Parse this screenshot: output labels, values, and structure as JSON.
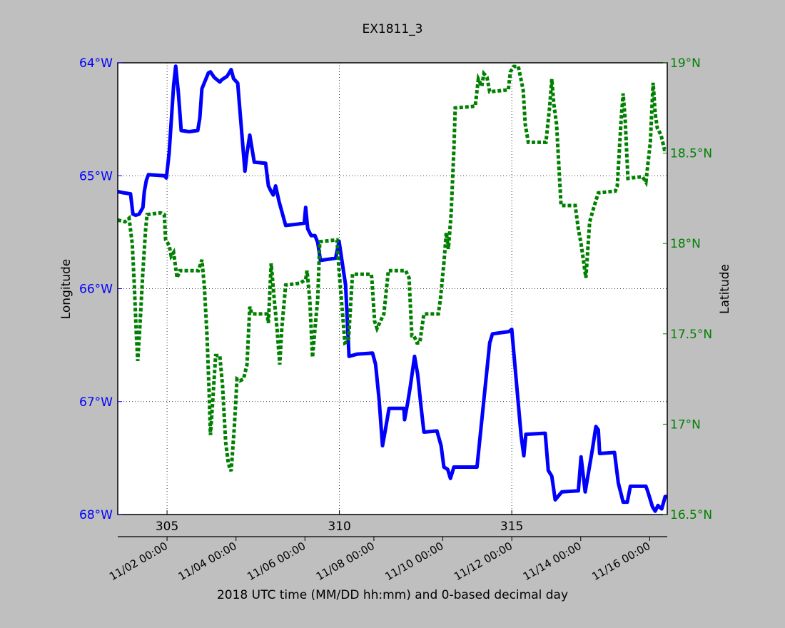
{
  "chart_data": {
    "type": "line",
    "title": "EX1811_3",
    "xlabel": "2018 UTC time (MM/DD hh:mm) and 0-based decimal day",
    "ylabel_left": "Longitude",
    "ylabel_right": "Latitude",
    "xlim": [
      303.57,
      319.51
    ],
    "ylim_left": [
      -68,
      -64
    ],
    "ylim_right": [
      16.5,
      19
    ],
    "grid": true,
    "colors": {
      "longitude": "#0000ff",
      "latitude": "#008000",
      "background": "#bfbfbf"
    },
    "x_ticks": [
      {
        "value": 305,
        "label": "305"
      },
      {
        "value": 310,
        "label": "310"
      },
      {
        "value": 315,
        "label": "315"
      }
    ],
    "date_ticks": [
      {
        "value": 305,
        "label": "11/02 00:00"
      },
      {
        "value": 307,
        "label": "11/04 00:00"
      },
      {
        "value": 309,
        "label": "11/06 00:00"
      },
      {
        "value": 311,
        "label": "11/08 00:00"
      },
      {
        "value": 313,
        "label": "11/10 00:00"
      },
      {
        "value": 315,
        "label": "11/12 00:00"
      },
      {
        "value": 317,
        "label": "11/14 00:00"
      },
      {
        "value": 319,
        "label": "11/16 00:00"
      }
    ],
    "left_ticks": [
      {
        "value": -64,
        "label": "64°W"
      },
      {
        "value": -65,
        "label": "65°W"
      },
      {
        "value": -66,
        "label": "66°W"
      },
      {
        "value": -67,
        "label": "67°W"
      },
      {
        "value": -68,
        "label": "68°W"
      }
    ],
    "right_ticks": [
      {
        "value": 19,
        "label": "19°N"
      },
      {
        "value": 18.5,
        "label": "18.5°N"
      },
      {
        "value": 18,
        "label": "18°N"
      },
      {
        "value": 17.5,
        "label": "17.5°N"
      },
      {
        "value": 17,
        "label": "17°N"
      },
      {
        "value": 16.5,
        "label": "16.5°N"
      }
    ],
    "series": [
      {
        "name": "Longitude",
        "axis": "left",
        "style": "solid",
        "points": [
          [
            303.57,
            -65.14
          ],
          [
            303.72,
            -65.15
          ],
          [
            303.94,
            -65.16
          ],
          [
            304.01,
            -65.34
          ],
          [
            304.09,
            -65.35
          ],
          [
            304.19,
            -65.34
          ],
          [
            304.3,
            -65.28
          ],
          [
            304.34,
            -65.14
          ],
          [
            304.4,
            -65.04
          ],
          [
            304.46,
            -64.99
          ],
          [
            304.92,
            -65.0
          ],
          [
            304.98,
            -65.02
          ],
          [
            305.06,
            -64.8
          ],
          [
            305.19,
            -64.2
          ],
          [
            305.25,
            -64.03
          ],
          [
            305.33,
            -64.27
          ],
          [
            305.41,
            -64.6
          ],
          [
            305.64,
            -64.61
          ],
          [
            305.89,
            -64.6
          ],
          [
            305.95,
            -64.49
          ],
          [
            306.01,
            -64.23
          ],
          [
            306.2,
            -64.09
          ],
          [
            306.26,
            -64.08
          ],
          [
            306.37,
            -64.13
          ],
          [
            306.53,
            -64.17
          ],
          [
            306.59,
            -64.15
          ],
          [
            306.74,
            -64.12
          ],
          [
            306.86,
            -64.06
          ],
          [
            306.93,
            -64.14
          ],
          [
            307.05,
            -64.18
          ],
          [
            307.09,
            -64.33
          ],
          [
            307.26,
            -64.96
          ],
          [
            307.32,
            -64.8
          ],
          [
            307.4,
            -64.64
          ],
          [
            307.53,
            -64.88
          ],
          [
            307.86,
            -64.89
          ],
          [
            307.94,
            -65.09
          ],
          [
            308.02,
            -65.14
          ],
          [
            308.08,
            -65.17
          ],
          [
            308.15,
            -65.09
          ],
          [
            308.25,
            -65.23
          ],
          [
            308.44,
            -65.44
          ],
          [
            308.75,
            -65.43
          ],
          [
            308.98,
            -65.42
          ],
          [
            309.02,
            -65.28
          ],
          [
            309.08,
            -65.47
          ],
          [
            309.18,
            -65.53
          ],
          [
            309.29,
            -65.53
          ],
          [
            309.37,
            -65.59
          ],
          [
            309.45,
            -65.75
          ],
          [
            309.89,
            -65.73
          ],
          [
            309.99,
            -65.58
          ],
          [
            310.18,
            -65.97
          ],
          [
            310.28,
            -66.6
          ],
          [
            310.51,
            -66.58
          ],
          [
            310.96,
            -66.57
          ],
          [
            311.05,
            -66.67
          ],
          [
            311.15,
            -66.98
          ],
          [
            311.25,
            -67.39
          ],
          [
            311.34,
            -67.24
          ],
          [
            311.44,
            -67.06
          ],
          [
            311.87,
            -67.06
          ],
          [
            311.89,
            -67.16
          ],
          [
            311.98,
            -67.01
          ],
          [
            312.06,
            -66.86
          ],
          [
            312.18,
            -66.6
          ],
          [
            312.27,
            -66.76
          ],
          [
            312.37,
            -67.05
          ],
          [
            312.45,
            -67.27
          ],
          [
            312.83,
            -67.26
          ],
          [
            312.95,
            -67.39
          ],
          [
            313.03,
            -67.58
          ],
          [
            313.14,
            -67.6
          ],
          [
            313.22,
            -67.68
          ],
          [
            313.32,
            -67.58
          ],
          [
            313.39,
            -67.58
          ],
          [
            313.99,
            -67.58
          ],
          [
            314.36,
            -66.48
          ],
          [
            314.44,
            -66.4
          ],
          [
            314.92,
            -66.38
          ],
          [
            315.0,
            -66.36
          ],
          [
            315.27,
            -67.3
          ],
          [
            315.35,
            -67.48
          ],
          [
            315.41,
            -67.29
          ],
          [
            315.97,
            -67.28
          ],
          [
            316.06,
            -67.61
          ],
          [
            316.16,
            -67.66
          ],
          [
            316.26,
            -67.87
          ],
          [
            316.45,
            -67.8
          ],
          [
            316.93,
            -67.79
          ],
          [
            317.01,
            -67.49
          ],
          [
            317.13,
            -67.8
          ],
          [
            317.34,
            -67.42
          ],
          [
            317.44,
            -67.22
          ],
          [
            317.51,
            -67.25
          ],
          [
            317.55,
            -67.46
          ],
          [
            317.98,
            -67.45
          ],
          [
            318.09,
            -67.72
          ],
          [
            318.23,
            -67.89
          ],
          [
            318.35,
            -67.89
          ],
          [
            318.44,
            -67.75
          ],
          [
            318.89,
            -67.75
          ],
          [
            318.95,
            -67.8
          ],
          [
            319.08,
            -67.93
          ],
          [
            319.16,
            -67.97
          ],
          [
            319.24,
            -67.92
          ],
          [
            319.35,
            -67.95
          ],
          [
            319.45,
            -67.84
          ],
          [
            319.51,
            -67.84
          ]
        ]
      },
      {
        "name": "Latitude",
        "axis": "right",
        "style": "dotted",
        "points": [
          [
            303.57,
            18.13
          ],
          [
            303.78,
            18.12
          ],
          [
            303.9,
            18.14
          ],
          [
            303.99,
            18.0
          ],
          [
            304.05,
            17.77
          ],
          [
            304.11,
            17.49
          ],
          [
            304.15,
            17.35
          ],
          [
            304.21,
            17.53
          ],
          [
            304.3,
            17.85
          ],
          [
            304.38,
            18.08
          ],
          [
            304.42,
            18.16
          ],
          [
            304.81,
            18.17
          ],
          [
            304.92,
            18.16
          ],
          [
            304.96,
            18.02
          ],
          [
            305.06,
            17.99
          ],
          [
            305.12,
            17.93
          ],
          [
            305.19,
            17.95
          ],
          [
            305.29,
            17.81
          ],
          [
            305.37,
            17.85
          ],
          [
            305.54,
            17.85
          ],
          [
            305.91,
            17.85
          ],
          [
            306.01,
            17.91
          ],
          [
            306.08,
            17.77
          ],
          [
            306.16,
            17.49
          ],
          [
            306.22,
            17.18
          ],
          [
            306.26,
            16.94
          ],
          [
            306.33,
            17.14
          ],
          [
            306.41,
            17.38
          ],
          [
            306.53,
            17.38
          ],
          [
            306.61,
            17.21
          ],
          [
            306.7,
            16.9
          ],
          [
            306.78,
            16.78
          ],
          [
            306.86,
            16.74
          ],
          [
            306.95,
            16.98
          ],
          [
            307.03,
            17.25
          ],
          [
            307.11,
            17.24
          ],
          [
            307.22,
            17.25
          ],
          [
            307.32,
            17.33
          ],
          [
            307.4,
            17.65
          ],
          [
            307.46,
            17.61
          ],
          [
            307.9,
            17.61
          ],
          [
            307.94,
            17.56
          ],
          [
            308.02,
            17.89
          ],
          [
            308.11,
            17.69
          ],
          [
            308.19,
            17.53
          ],
          [
            308.27,
            17.33
          ],
          [
            308.33,
            17.53
          ],
          [
            308.44,
            17.77
          ],
          [
            308.85,
            17.78
          ],
          [
            309.02,
            17.8
          ],
          [
            309.06,
            17.85
          ],
          [
            309.14,
            17.69
          ],
          [
            309.22,
            17.37
          ],
          [
            309.31,
            17.57
          ],
          [
            309.37,
            17.69
          ],
          [
            309.43,
            18.01
          ],
          [
            309.93,
            18.02
          ],
          [
            309.99,
            17.85
          ],
          [
            310.16,
            17.45
          ],
          [
            310.26,
            17.46
          ],
          [
            310.38,
            17.83
          ],
          [
            310.92,
            17.83
          ],
          [
            310.94,
            17.81
          ],
          [
            311.02,
            17.57
          ],
          [
            311.09,
            17.53
          ],
          [
            311.19,
            17.57
          ],
          [
            311.29,
            17.61
          ],
          [
            311.42,
            17.85
          ],
          [
            311.92,
            17.85
          ],
          [
            312.02,
            17.81
          ],
          [
            312.1,
            17.49
          ],
          [
            312.16,
            17.49
          ],
          [
            312.25,
            17.45
          ],
          [
            312.33,
            17.45
          ],
          [
            312.45,
            17.61
          ],
          [
            312.87,
            17.61
          ],
          [
            312.93,
            17.69
          ],
          [
            313.03,
            17.89
          ],
          [
            313.1,
            18.06
          ],
          [
            313.16,
            17.97
          ],
          [
            313.24,
            18.16
          ],
          [
            313.32,
            18.52
          ],
          [
            313.36,
            18.75
          ],
          [
            313.94,
            18.76
          ],
          [
            314.03,
            18.91
          ],
          [
            314.13,
            18.87
          ],
          [
            314.19,
            18.94
          ],
          [
            314.28,
            18.92
          ],
          [
            314.36,
            18.84
          ],
          [
            314.9,
            18.85
          ],
          [
            314.96,
            18.95
          ],
          [
            315.06,
            18.98
          ],
          [
            315.19,
            18.98
          ],
          [
            315.33,
            18.85
          ],
          [
            315.39,
            18.66
          ],
          [
            315.48,
            18.56
          ],
          [
            315.99,
            18.56
          ],
          [
            316.1,
            18.76
          ],
          [
            316.16,
            18.91
          ],
          [
            316.22,
            18.77
          ],
          [
            316.3,
            18.66
          ],
          [
            316.43,
            18.21
          ],
          [
            316.84,
            18.21
          ],
          [
            316.93,
            18.08
          ],
          [
            317.01,
            18.0
          ],
          [
            317.09,
            17.89
          ],
          [
            317.15,
            17.81
          ],
          [
            317.26,
            18.12
          ],
          [
            317.38,
            18.2
          ],
          [
            317.51,
            18.28
          ],
          [
            318.0,
            18.29
          ],
          [
            318.06,
            18.32
          ],
          [
            318.17,
            18.68
          ],
          [
            318.23,
            18.83
          ],
          [
            318.29,
            18.68
          ],
          [
            318.37,
            18.36
          ],
          [
            318.79,
            18.37
          ],
          [
            318.89,
            18.34
          ],
          [
            319.02,
            18.56
          ],
          [
            319.1,
            18.89
          ],
          [
            319.16,
            18.72
          ],
          [
            319.22,
            18.64
          ],
          [
            319.33,
            18.6
          ],
          [
            319.43,
            18.52
          ],
          [
            319.51,
            18.52
          ]
        ]
      }
    ]
  }
}
